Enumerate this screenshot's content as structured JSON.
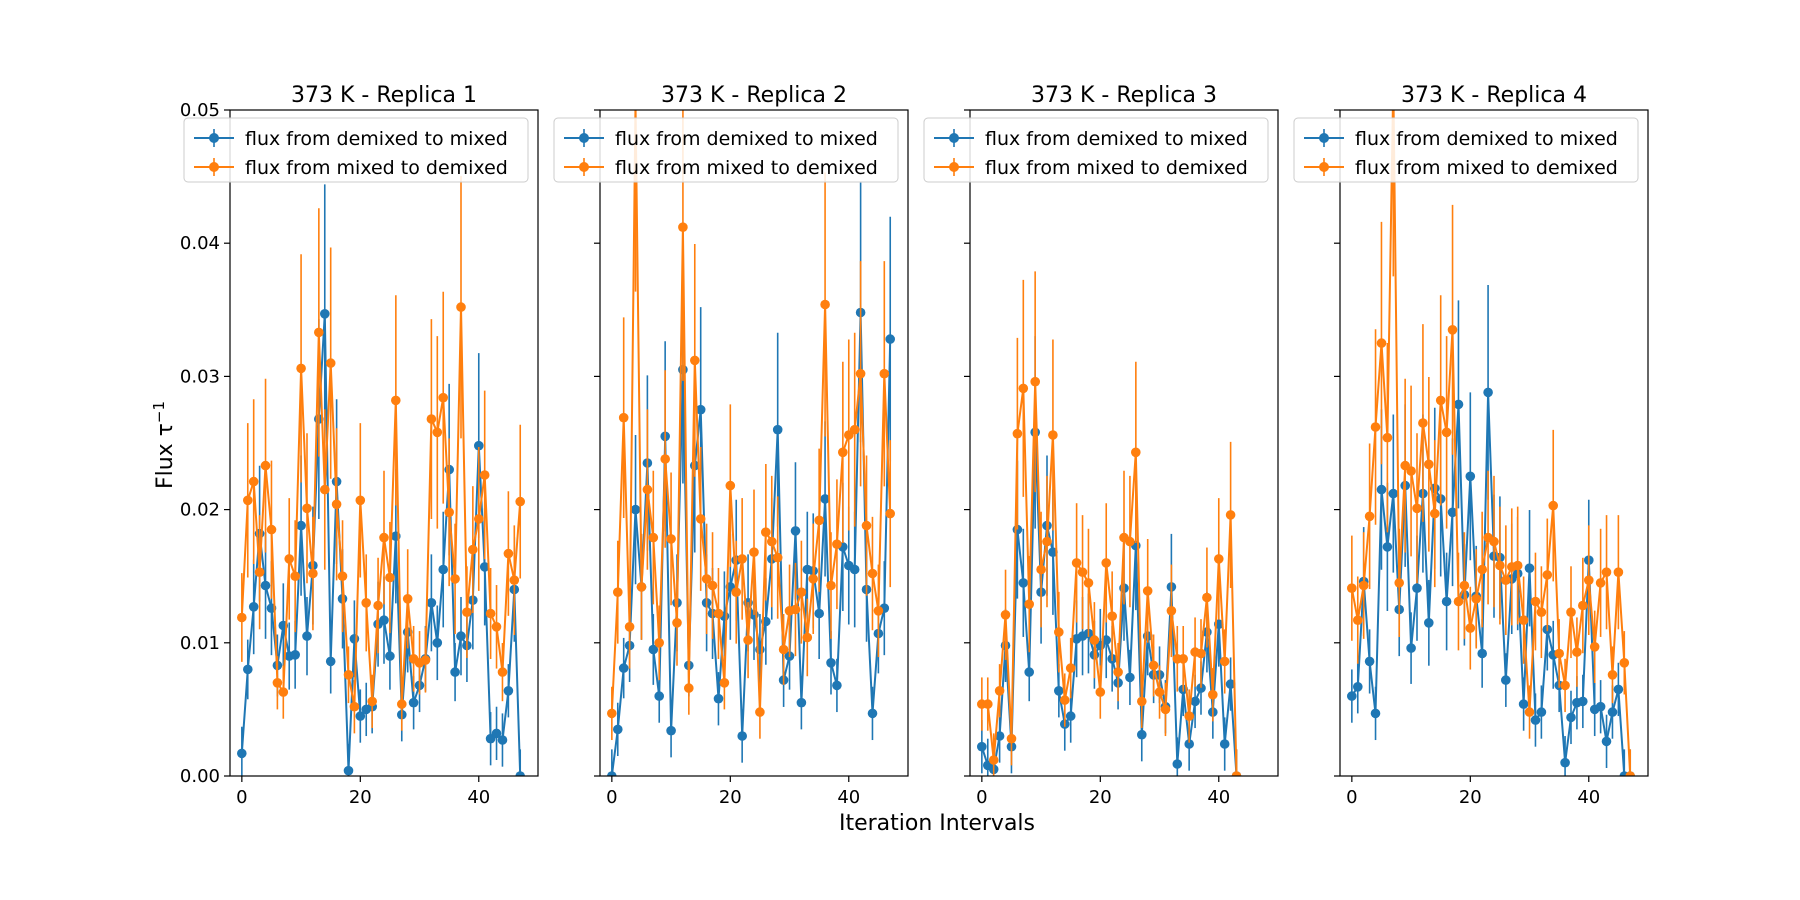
{
  "figure": {
    "xlabel": "Iteration Intervals",
    "ylabel": "Flux τ",
    "ylabel_superscript": "−1"
  },
  "colors": {
    "blue": "#1f77b4",
    "orange": "#ff7f0e"
  },
  "chart_data": [
    {
      "type": "line",
      "title": "373 K - Replica 1",
      "xlim": [
        -2,
        50
      ],
      "ylim": [
        0,
        0.05
      ],
      "xticks": [
        0,
        20,
        40
      ],
      "yticks": [
        0.0,
        0.01,
        0.02,
        0.03,
        0.04,
        0.05
      ],
      "ytick_labels": [
        "0.00",
        "0.01",
        "0.02",
        "0.03",
        "0.04",
        "0.05"
      ],
      "legend": "top",
      "series": [
        {
          "name": "flux from demixed to mixed",
          "color": "#1f77b4",
          "values": [
            0.0017,
            0.008,
            0.0127,
            0.0182,
            0.0143,
            0.0126,
            0.0083,
            0.0113,
            0.009,
            0.0091,
            0.0188,
            0.0105,
            0.0158,
            0.0268,
            0.0347,
            0.0086,
            0.0221,
            0.0133,
            0.0004,
            0.0103,
            0.0045,
            0.005,
            0.0052,
            0.0114,
            0.0117,
            0.009,
            0.018,
            0.0046,
            0.0108,
            0.0055,
            0.0068,
            0.0088,
            0.013,
            0.01,
            0.0155,
            0.023,
            0.0078,
            0.0105,
            0.0098,
            0.0132,
            0.0248,
            0.0157,
            0.0028,
            0.0032,
            0.0027,
            0.0064,
            0.014,
            0.0
          ]
        },
        {
          "name": "flux from mixed to demixed",
          "color": "#ff7f0e",
          "values": [
            0.0119,
            0.0207,
            0.0221,
            0.0153,
            0.0233,
            0.0185,
            0.007,
            0.0063,
            0.0163,
            0.015,
            0.0306,
            0.0201,
            0.0152,
            0.0333,
            0.0215,
            0.031,
            0.0204,
            0.015,
            0.0076,
            0.0052,
            0.0207,
            0.013,
            0.0056,
            0.0128,
            0.0179,
            0.0149,
            0.0282,
            0.0054,
            0.0133,
            0.0088,
            0.0085,
            0.0087,
            0.0268,
            0.0258,
            0.0284,
            0.0198,
            0.0148,
            0.0352,
            0.0123,
            0.017,
            0.0193,
            0.0226,
            0.0122,
            0.0112,
            0.0078,
            0.0167,
            0.0147,
            0.0206
          ]
        }
      ]
    },
    {
      "type": "line",
      "title": "373 K - Replica 2",
      "xlim": [
        -2,
        50
      ],
      "ylim": [
        0,
        0.05
      ],
      "xticks": [
        0,
        20,
        40
      ],
      "yticks": [
        0.0,
        0.01,
        0.02,
        0.03,
        0.04,
        0.05
      ],
      "legend": "top",
      "series": [
        {
          "name": "flux from demixed to mixed",
          "color": "#1f77b4",
          "values": [
            0.0,
            0.0035,
            0.0081,
            0.0098,
            0.02,
            0.0142,
            0.0235,
            0.0095,
            0.006,
            0.0255,
            0.0034,
            0.013,
            0.0305,
            0.0083,
            0.0233,
            0.0275,
            0.013,
            0.0122,
            0.0058,
            0.012,
            0.0142,
            0.0162,
            0.003,
            0.013,
            0.0121,
            0.0095,
            0.0116,
            0.0163,
            0.026,
            0.0072,
            0.009,
            0.0184,
            0.0055,
            0.0155,
            0.0154,
            0.0122,
            0.0208,
            0.0085,
            0.0068,
            0.0172,
            0.0158,
            0.0155,
            0.0348,
            0.014,
            0.0047,
            0.0107,
            0.0126,
            0.0328
          ]
        },
        {
          "name": "flux from mixed to demixed",
          "color": "#ff7f0e",
          "values": [
            0.0047,
            0.0138,
            0.0269,
            0.0112,
            0.0505,
            0.0142,
            0.0215,
            0.0179,
            0.01,
            0.0238,
            0.0178,
            0.0115,
            0.0412,
            0.0066,
            0.0312,
            0.0193,
            0.0148,
            0.0143,
            0.0122,
            0.007,
            0.0218,
            0.0138,
            0.0163,
            0.0102,
            0.0168,
            0.0048,
            0.0183,
            0.0176,
            0.0164,
            0.0095,
            0.0124,
            0.0125,
            0.0138,
            0.0104,
            0.0148,
            0.0192,
            0.0354,
            0.0143,
            0.0174,
            0.0243,
            0.0256,
            0.026,
            0.0302,
            0.0188,
            0.0152,
            0.0124,
            0.0302,
            0.0197
          ]
        }
      ]
    },
    {
      "type": "line",
      "title": "373 K - Replica 3",
      "xlim": [
        -2,
        50
      ],
      "ylim": [
        0,
        0.05
      ],
      "xticks": [
        0,
        20,
        40
      ],
      "yticks": [
        0.0,
        0.01,
        0.02,
        0.03,
        0.04,
        0.05
      ],
      "legend": "top",
      "series": [
        {
          "name": "flux from demixed to mixed",
          "color": "#1f77b4",
          "values": [
            0.0022,
            0.0008,
            0.0005,
            0.003,
            0.0098,
            0.0022,
            0.0185,
            0.0145,
            0.0078,
            0.0258,
            0.0138,
            0.0188,
            0.0168,
            0.0064,
            0.0039,
            0.0045,
            0.0103,
            0.0105,
            0.0107,
            0.0091,
            0.0098,
            0.0102,
            0.0088,
            0.007,
            0.0141,
            0.0074,
            0.0173,
            0.0031,
            0.0105,
            0.0076,
            0.0076,
            0.0052,
            0.0142,
            0.0009,
            0.0065,
            0.0024,
            0.0056,
            0.0066,
            0.0108,
            0.0048,
            0.0114,
            0.0024,
            0.0069,
            0.0
          ]
        },
        {
          "name": "flux from mixed to demixed",
          "color": "#ff7f0e",
          "values": [
            0.0054,
            0.0054,
            0.0012,
            0.0064,
            0.0121,
            0.0028,
            0.0257,
            0.0291,
            0.0129,
            0.0296,
            0.0155,
            0.0176,
            0.0256,
            0.0108,
            0.0057,
            0.0081,
            0.016,
            0.0153,
            0.0145,
            0.0102,
            0.0063,
            0.016,
            0.012,
            0.0078,
            0.0179,
            0.0176,
            0.0243,
            0.0056,
            0.0139,
            0.0083,
            0.0063,
            0.005,
            0.0124,
            0.0088,
            0.0088,
            0.0045,
            0.0093,
            0.0092,
            0.0134,
            0.0061,
            0.0163,
            0.0086,
            0.0196,
            0.0
          ]
        }
      ]
    },
    {
      "type": "line",
      "title": "373 K - Replica 4",
      "xlim": [
        -2,
        50
      ],
      "ylim": [
        0,
        0.05
      ],
      "xticks": [
        0,
        20,
        40
      ],
      "yticks": [
        0.0,
        0.01,
        0.02,
        0.03,
        0.04,
        0.05
      ],
      "legend": "top",
      "series": [
        {
          "name": "flux from demixed to mixed",
          "color": "#1f77b4",
          "values": [
            0.006,
            0.0067,
            0.0146,
            0.0086,
            0.0047,
            0.0215,
            0.0172,
            0.0212,
            0.0125,
            0.0218,
            0.0096,
            0.0141,
            0.0212,
            0.0115,
            0.0216,
            0.0208,
            0.0131,
            0.0198,
            0.0279,
            0.0136,
            0.0225,
            0.0135,
            0.0092,
            0.0288,
            0.0165,
            0.0164,
            0.0072,
            0.0148,
            0.0152,
            0.0054,
            0.0156,
            0.0042,
            0.0048,
            0.011,
            0.0091,
            0.0068,
            0.001,
            0.0044,
            0.0055,
            0.0056,
            0.0162,
            0.005,
            0.0052,
            0.0026,
            0.0048,
            0.0065,
            0.0,
            0.0
          ]
        },
        {
          "name": "flux from mixed to demixed",
          "color": "#ff7f0e",
          "values": [
            0.0141,
            0.0117,
            0.0143,
            0.0195,
            0.0262,
            0.0325,
            0.0254,
            0.0521,
            0.0145,
            0.0233,
            0.0229,
            0.0201,
            0.0265,
            0.0234,
            0.0197,
            0.0282,
            0.0258,
            0.0335,
            0.0131,
            0.0143,
            0.0111,
            0.0133,
            0.0155,
            0.0179,
            0.0176,
            0.0158,
            0.0147,
            0.0157,
            0.0158,
            0.0117,
            0.0048,
            0.0131,
            0.0123,
            0.0151,
            0.0203,
            0.0092,
            0.0068,
            0.0123,
            0.0093,
            0.0128,
            0.0147,
            0.0097,
            0.0145,
            0.0153,
            0.0076,
            0.0153,
            0.0085,
            0.0
          ]
        }
      ]
    }
  ]
}
